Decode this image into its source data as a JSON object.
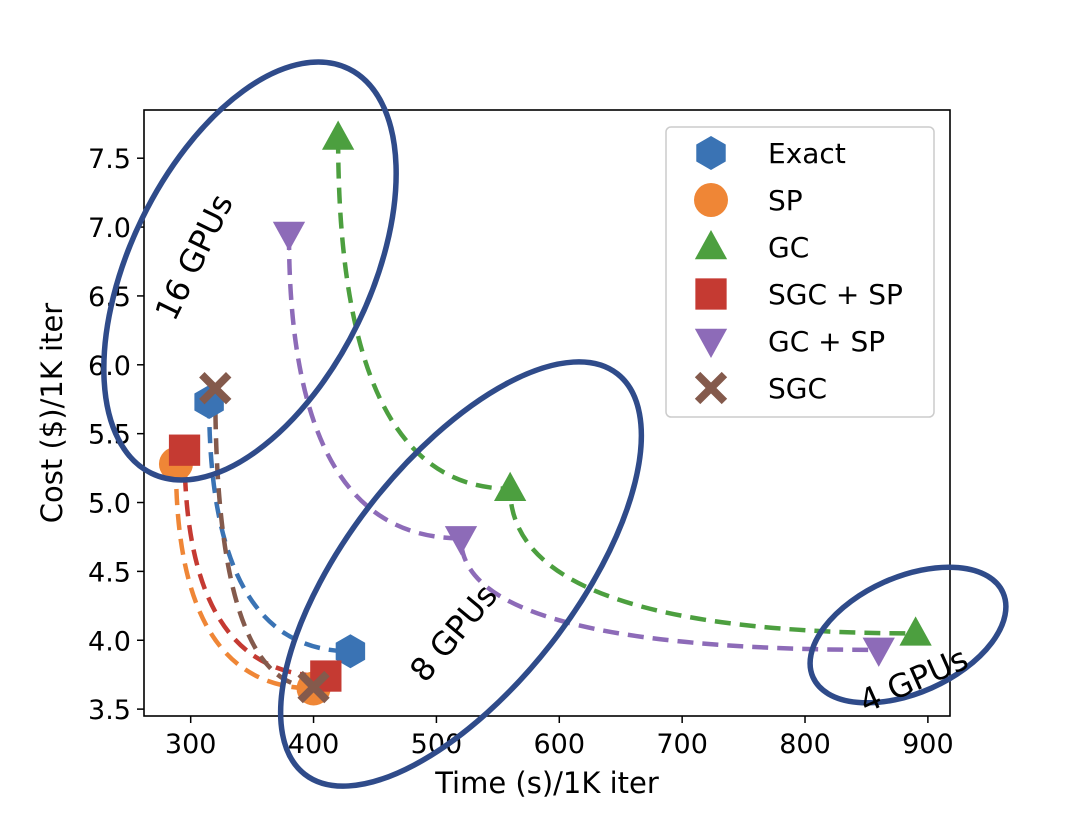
{
  "chart_data": {
    "type": "scatter",
    "title": "",
    "xlabel": "Time (s)/1K iter",
    "ylabel": "Cost ($)/1K iter",
    "xlim": [
      262,
      918
    ],
    "ylim": [
      3.45,
      7.85
    ],
    "xticks": [
      300,
      400,
      500,
      600,
      700,
      800,
      900
    ],
    "yticks": [
      3.5,
      4.0,
      4.5,
      5.0,
      5.5,
      6.0,
      6.5,
      7.0,
      7.5
    ],
    "xtick_labels": [
      "300",
      "400",
      "500",
      "600",
      "700",
      "800",
      "900"
    ],
    "ytick_labels": [
      "3.5",
      "4.0",
      "4.5",
      "5.0",
      "5.5",
      "6.0",
      "6.5",
      "7.0",
      "7.5"
    ],
    "grid": false,
    "legend_position": "top-right",
    "series": [
      {
        "name": "Exact",
        "marker": "hexagon",
        "color": "#3a73b4",
        "points": [
          {
            "gpus": 16,
            "x": 315,
            "y": 5.73
          },
          {
            "gpus": 8,
            "x": 430,
            "y": 3.92
          }
        ]
      },
      {
        "name": "SP",
        "marker": "circle",
        "color": "#ef8636",
        "points": [
          {
            "gpus": 16,
            "x": 288,
            "y": 5.28
          },
          {
            "gpus": 8,
            "x": 400,
            "y": 3.65
          }
        ]
      },
      {
        "name": "GC",
        "marker": "triangle-up",
        "color": "#4c9f3f",
        "points": [
          {
            "gpus": 16,
            "x": 420,
            "y": 7.65
          },
          {
            "gpus": 8,
            "x": 560,
            "y": 5.1
          },
          {
            "gpus": 4,
            "x": 890,
            "y": 4.05
          }
        ]
      },
      {
        "name": "SGC + SP",
        "marker": "square",
        "color": "#c53a32",
        "points": [
          {
            "gpus": 16,
            "x": 295,
            "y": 5.38
          },
          {
            "gpus": 8,
            "x": 410,
            "y": 3.74
          }
        ]
      },
      {
        "name": "GC + SP",
        "marker": "triangle-down",
        "color": "#8d6bb8",
        "points": [
          {
            "gpus": 16,
            "x": 380,
            "y": 6.95
          },
          {
            "gpus": 8,
            "x": 520,
            "y": 4.74
          },
          {
            "gpus": 4,
            "x": 860,
            "y": 3.93
          }
        ]
      },
      {
        "name": "SGC",
        "marker": "x",
        "color": "#845a4c",
        "points": [
          {
            "gpus": 16,
            "x": 320,
            "y": 5.83
          },
          {
            "gpus": 8,
            "x": 400,
            "y": 3.66
          }
        ]
      }
    ],
    "annotations": [
      {
        "text": "16 GPUs",
        "gpus": 16
      },
      {
        "text": "8 GPUs",
        "gpus": 8
      },
      {
        "text": "4 GPUs",
        "gpus": 4
      }
    ]
  },
  "colors": {
    "ellipse_stroke": "#2f4b8a",
    "axis": "#000000",
    "legend_border": "#cccccc"
  }
}
